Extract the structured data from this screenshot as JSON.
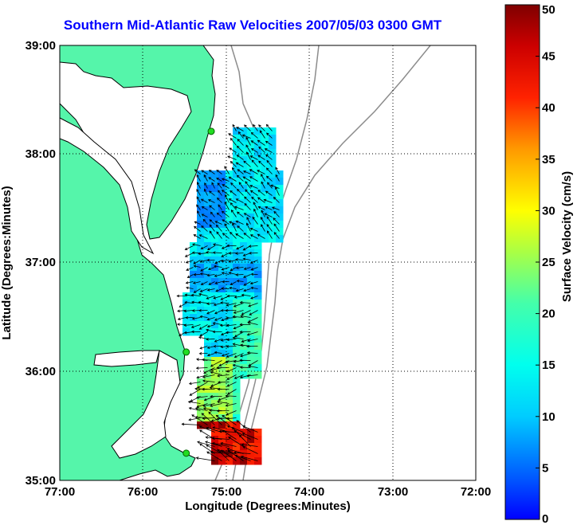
{
  "title": "Southern Mid-Atlantic Raw Velocities 2007/05/03 0300 GMT",
  "x_axis": {
    "label": "Longitude (Degrees:Minutes)",
    "ticks": [
      "77:00",
      "76:00",
      "75:00",
      "74:00",
      "73:00",
      "72:00"
    ]
  },
  "y_axis": {
    "label": "Latitude (Degrees:Minutes)",
    "ticks": [
      "39:00",
      "38:00",
      "37:00",
      "36:00",
      "35:00"
    ]
  },
  "colorbar": {
    "label": "Surface Velocity (cm/s)",
    "ticks": [
      "50",
      "45",
      "40",
      "35",
      "30",
      "25",
      "20",
      "15",
      "10",
      "5",
      "0"
    ],
    "min": 0,
    "max": 50
  },
  "map": {
    "lon_range": [
      -77,
      -72
    ],
    "lat_range": [
      35,
      39
    ],
    "grid": "dotted",
    "land_color": "#55f5aa",
    "coast_color": "#000000",
    "bathymetry_color": "#8c8c8c"
  },
  "stations": [
    {
      "lon": -75.18,
      "lat": 38.21
    },
    {
      "lon": -75.48,
      "lat": 36.18
    },
    {
      "lon": -75.48,
      "lat": 35.25
    }
  ]
}
